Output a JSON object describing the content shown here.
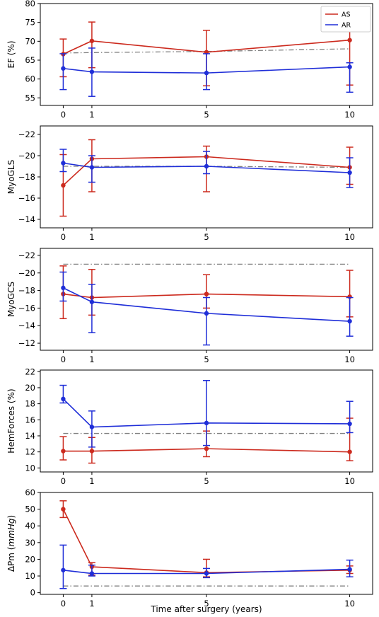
{
  "figure": {
    "xlabel": "Time after surgery (years)"
  },
  "chart_data": [
    {
      "type": "line",
      "ylabel": "EF (%)",
      "x": [
        0,
        1,
        5,
        10
      ],
      "xlim": [
        -0.8,
        10.8
      ],
      "ylim": [
        53,
        80
      ],
      "yticks": [
        55,
        60,
        65,
        70,
        75,
        80
      ],
      "ytick_labels": [
        "55",
        "60",
        "65",
        "70",
        "75",
        "80"
      ],
      "xticks": [
        0,
        1,
        5,
        10
      ],
      "xtick_labels": [
        "0",
        "1",
        "5",
        "10"
      ],
      "legend": {
        "position": "top-right",
        "entries": [
          "AS",
          "AR"
        ]
      },
      "series": [
        {
          "name": "AS",
          "color": "#cc2a1e",
          "values": [
            66.6,
            70.1,
            67.1,
            70.3
          ],
          "err_low": [
            60.6,
            63.0,
            58.2,
            58.4
          ],
          "err_high": [
            70.6,
            75.1,
            72.9,
            73.9
          ]
        },
        {
          "name": "AR",
          "color": "#1f2ed8",
          "values": [
            62.8,
            61.9,
            61.6,
            63.2
          ],
          "err_low": [
            57.2,
            55.4,
            57.2,
            56.5
          ],
          "err_high": [
            66.7,
            68.2,
            66.7,
            64.3
          ]
        }
      ],
      "reference": {
        "color": "#808080",
        "values": [
          66.9,
          67.0,
          67.3,
          68.0
        ]
      }
    },
    {
      "type": "line",
      "ylabel": "MyoGLS",
      "x": [
        0,
        1,
        5,
        10
      ],
      "xlim": [
        -0.8,
        10.8
      ],
      "ylim": [
        -22.8,
        -13.2
      ],
      "y_inverted": true,
      "yticks": [
        -22,
        -20,
        -18,
        -16,
        -14
      ],
      "ytick_labels": [
        "−22",
        "−20",
        "−18",
        "−16",
        "−14"
      ],
      "xticks": [
        0,
        1,
        5,
        10
      ],
      "xtick_labels": [
        "0",
        "1",
        "5",
        "10"
      ],
      "series": [
        {
          "name": "AS",
          "color": "#cc2a1e",
          "values": [
            -17.2,
            -19.7,
            -19.9,
            -18.9
          ],
          "err_low": [
            -20.1,
            -21.5,
            -20.9,
            -20.8
          ],
          "err_high": [
            -14.3,
            -16.6,
            -16.6,
            -17.3
          ]
        },
        {
          "name": "AR",
          "color": "#1f2ed8",
          "values": [
            -19.3,
            -18.9,
            -19.0,
            -18.4
          ],
          "err_low": [
            -20.6,
            -20.0,
            -20.4,
            -19.8
          ],
          "err_high": [
            -18.5,
            -17.5,
            -18.3,
            -17.0
          ]
        }
      ],
      "reference": {
        "color": "#808080",
        "values": [
          -19.0,
          -19.0,
          -19.0,
          -18.9
        ]
      }
    },
    {
      "type": "line",
      "ylabel": "MyoGCS",
      "x": [
        0,
        1,
        5,
        10
      ],
      "xlim": [
        -0.8,
        10.8
      ],
      "ylim": [
        -22.8,
        -11.2
      ],
      "y_inverted": true,
      "yticks": [
        -22,
        -20,
        -18,
        -16,
        -14,
        -12
      ],
      "ytick_labels": [
        "−22",
        "−20",
        "−18",
        "−16",
        "−14",
        "−12"
      ],
      "xticks": [
        0,
        1,
        5,
        10
      ],
      "xtick_labels": [
        "0",
        "1",
        "5",
        "10"
      ],
      "series": [
        {
          "name": "AS",
          "color": "#cc2a1e",
          "values": [
            -17.6,
            -17.2,
            -17.6,
            -17.3
          ],
          "err_low": [
            -20.8,
            -20.4,
            -19.8,
            -20.3
          ],
          "err_high": [
            -14.8,
            -15.2,
            -16.0,
            -15.0
          ]
        },
        {
          "name": "AR",
          "color": "#1f2ed8",
          "values": [
            -18.3,
            -16.7,
            -15.4,
            -14.5
          ],
          "err_low": [
            -20.1,
            -18.7,
            -17.2,
            -17.2
          ],
          "err_high": [
            -16.8,
            -13.2,
            -11.8,
            -12.8
          ]
        }
      ],
      "reference": {
        "color": "#808080",
        "values": [
          -21.0,
          -21.0,
          -21.0,
          -21.0
        ]
      }
    },
    {
      "type": "line",
      "ylabel": "HemForces (%)",
      "x": [
        0,
        1,
        5,
        10
      ],
      "xlim": [
        -0.8,
        10.8
      ],
      "ylim": [
        9.5,
        22.2
      ],
      "yticks": [
        10,
        12,
        14,
        16,
        18,
        20,
        22
      ],
      "ytick_labels": [
        "10",
        "12",
        "14",
        "16",
        "18",
        "20",
        "22"
      ],
      "xticks": [
        0,
        1,
        5,
        10
      ],
      "xtick_labels": [
        "0",
        "1",
        "5",
        "10"
      ],
      "series": [
        {
          "name": "AS",
          "color": "#cc2a1e",
          "values": [
            12.1,
            12.1,
            12.4,
            12.0
          ],
          "err_low": [
            11.0,
            10.6,
            11.4,
            10.9
          ],
          "err_high": [
            13.9,
            13.8,
            14.6,
            16.2
          ]
        },
        {
          "name": "AR",
          "color": "#1f2ed8",
          "values": [
            18.6,
            15.1,
            15.6,
            15.5
          ],
          "err_low": [
            18.1,
            12.6,
            12.8,
            14.4
          ],
          "err_high": [
            20.3,
            17.1,
            20.9,
            18.3
          ]
        }
      ],
      "reference": {
        "color": "#808080",
        "values": [
          14.3,
          14.3,
          14.3,
          14.3
        ]
      }
    },
    {
      "type": "line",
      "ylabel": "ΔPm",
      "ylabel_unit": "mmHg",
      "x": [
        0,
        1,
        5,
        10
      ],
      "xlim": [
        -0.8,
        10.8
      ],
      "ylim": [
        -1,
        60
      ],
      "yticks": [
        0,
        10,
        20,
        30,
        40,
        50,
        60
      ],
      "ytick_labels": [
        "0",
        "10",
        "20",
        "30",
        "40",
        "50",
        "60"
      ],
      "xticks": [
        0,
        1,
        5,
        10
      ],
      "xtick_labels": [
        "0",
        "1",
        "5",
        "10"
      ],
      "series": [
        {
          "name": "AS",
          "color": "#cc2a1e",
          "values": [
            50.0,
            15.5,
            12.0,
            13.5
          ],
          "err_low": [
            45.0,
            10.5,
            9.5,
            11.5
          ],
          "err_high": [
            55.0,
            18.0,
            20.0,
            16.0
          ]
        },
        {
          "name": "AR",
          "color": "#1f2ed8",
          "values": [
            13.5,
            11.5,
            11.5,
            14.0
          ],
          "err_low": [
            2.5,
            10.0,
            9.0,
            9.5
          ],
          "err_high": [
            28.5,
            16.5,
            14.5,
            19.5
          ]
        }
      ],
      "reference": {
        "color": "#808080",
        "values": [
          4.0,
          4.0,
          4.0,
          4.0
        ]
      }
    }
  ]
}
